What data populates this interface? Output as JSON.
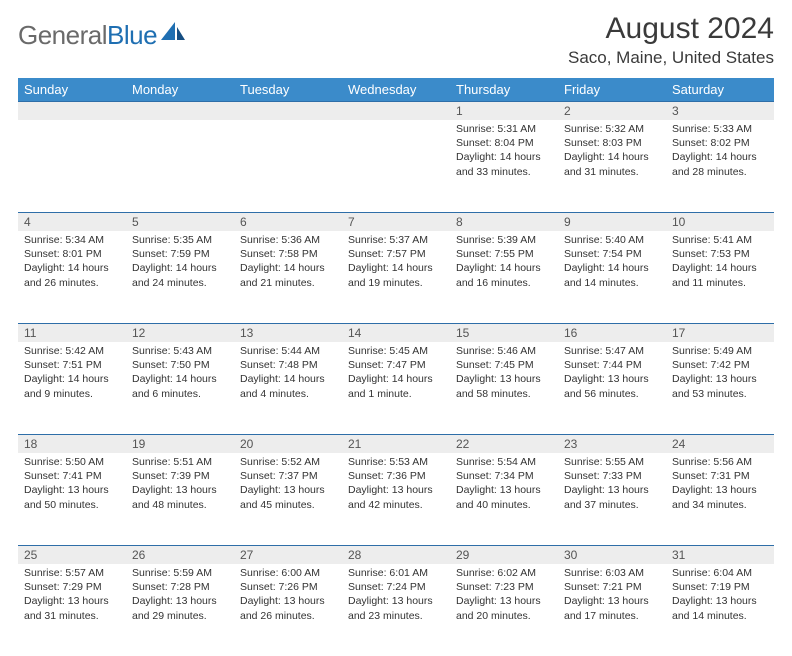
{
  "brand": {
    "part1": "General",
    "part2": "Blue"
  },
  "title": "August 2024",
  "location": "Saco, Maine, United States",
  "theme": {
    "header_bg": "#3b8bca",
    "header_text": "#ffffff",
    "daynum_bg": "#ededed",
    "daynum_border": "#2e6ea8",
    "body_text": "#333333",
    "title_color": "#3a3a3a",
    "title_fontsize": 30,
    "location_fontsize": 17,
    "weekday_fontsize": 13,
    "cell_fontsize": 10.5
  },
  "weekdays": [
    "Sunday",
    "Monday",
    "Tuesday",
    "Wednesday",
    "Thursday",
    "Friday",
    "Saturday"
  ],
  "weeks": [
    [
      null,
      null,
      null,
      null,
      {
        "n": "1",
        "sunrise": "Sunrise: 5:31 AM",
        "sunset": "Sunset: 8:04 PM",
        "daylight": "Daylight: 14 hours and 33 minutes."
      },
      {
        "n": "2",
        "sunrise": "Sunrise: 5:32 AM",
        "sunset": "Sunset: 8:03 PM",
        "daylight": "Daylight: 14 hours and 31 minutes."
      },
      {
        "n": "3",
        "sunrise": "Sunrise: 5:33 AM",
        "sunset": "Sunset: 8:02 PM",
        "daylight": "Daylight: 14 hours and 28 minutes."
      }
    ],
    [
      {
        "n": "4",
        "sunrise": "Sunrise: 5:34 AM",
        "sunset": "Sunset: 8:01 PM",
        "daylight": "Daylight: 14 hours and 26 minutes."
      },
      {
        "n": "5",
        "sunrise": "Sunrise: 5:35 AM",
        "sunset": "Sunset: 7:59 PM",
        "daylight": "Daylight: 14 hours and 24 minutes."
      },
      {
        "n": "6",
        "sunrise": "Sunrise: 5:36 AM",
        "sunset": "Sunset: 7:58 PM",
        "daylight": "Daylight: 14 hours and 21 minutes."
      },
      {
        "n": "7",
        "sunrise": "Sunrise: 5:37 AM",
        "sunset": "Sunset: 7:57 PM",
        "daylight": "Daylight: 14 hours and 19 minutes."
      },
      {
        "n": "8",
        "sunrise": "Sunrise: 5:39 AM",
        "sunset": "Sunset: 7:55 PM",
        "daylight": "Daylight: 14 hours and 16 minutes."
      },
      {
        "n": "9",
        "sunrise": "Sunrise: 5:40 AM",
        "sunset": "Sunset: 7:54 PM",
        "daylight": "Daylight: 14 hours and 14 minutes."
      },
      {
        "n": "10",
        "sunrise": "Sunrise: 5:41 AM",
        "sunset": "Sunset: 7:53 PM",
        "daylight": "Daylight: 14 hours and 11 minutes."
      }
    ],
    [
      {
        "n": "11",
        "sunrise": "Sunrise: 5:42 AM",
        "sunset": "Sunset: 7:51 PM",
        "daylight": "Daylight: 14 hours and 9 minutes."
      },
      {
        "n": "12",
        "sunrise": "Sunrise: 5:43 AM",
        "sunset": "Sunset: 7:50 PM",
        "daylight": "Daylight: 14 hours and 6 minutes."
      },
      {
        "n": "13",
        "sunrise": "Sunrise: 5:44 AM",
        "sunset": "Sunset: 7:48 PM",
        "daylight": "Daylight: 14 hours and 4 minutes."
      },
      {
        "n": "14",
        "sunrise": "Sunrise: 5:45 AM",
        "sunset": "Sunset: 7:47 PM",
        "daylight": "Daylight: 14 hours and 1 minute."
      },
      {
        "n": "15",
        "sunrise": "Sunrise: 5:46 AM",
        "sunset": "Sunset: 7:45 PM",
        "daylight": "Daylight: 13 hours and 58 minutes."
      },
      {
        "n": "16",
        "sunrise": "Sunrise: 5:47 AM",
        "sunset": "Sunset: 7:44 PM",
        "daylight": "Daylight: 13 hours and 56 minutes."
      },
      {
        "n": "17",
        "sunrise": "Sunrise: 5:49 AM",
        "sunset": "Sunset: 7:42 PM",
        "daylight": "Daylight: 13 hours and 53 minutes."
      }
    ],
    [
      {
        "n": "18",
        "sunrise": "Sunrise: 5:50 AM",
        "sunset": "Sunset: 7:41 PM",
        "daylight": "Daylight: 13 hours and 50 minutes."
      },
      {
        "n": "19",
        "sunrise": "Sunrise: 5:51 AM",
        "sunset": "Sunset: 7:39 PM",
        "daylight": "Daylight: 13 hours and 48 minutes."
      },
      {
        "n": "20",
        "sunrise": "Sunrise: 5:52 AM",
        "sunset": "Sunset: 7:37 PM",
        "daylight": "Daylight: 13 hours and 45 minutes."
      },
      {
        "n": "21",
        "sunrise": "Sunrise: 5:53 AM",
        "sunset": "Sunset: 7:36 PM",
        "daylight": "Daylight: 13 hours and 42 minutes."
      },
      {
        "n": "22",
        "sunrise": "Sunrise: 5:54 AM",
        "sunset": "Sunset: 7:34 PM",
        "daylight": "Daylight: 13 hours and 40 minutes."
      },
      {
        "n": "23",
        "sunrise": "Sunrise: 5:55 AM",
        "sunset": "Sunset: 7:33 PM",
        "daylight": "Daylight: 13 hours and 37 minutes."
      },
      {
        "n": "24",
        "sunrise": "Sunrise: 5:56 AM",
        "sunset": "Sunset: 7:31 PM",
        "daylight": "Daylight: 13 hours and 34 minutes."
      }
    ],
    [
      {
        "n": "25",
        "sunrise": "Sunrise: 5:57 AM",
        "sunset": "Sunset: 7:29 PM",
        "daylight": "Daylight: 13 hours and 31 minutes."
      },
      {
        "n": "26",
        "sunrise": "Sunrise: 5:59 AM",
        "sunset": "Sunset: 7:28 PM",
        "daylight": "Daylight: 13 hours and 29 minutes."
      },
      {
        "n": "27",
        "sunrise": "Sunrise: 6:00 AM",
        "sunset": "Sunset: 7:26 PM",
        "daylight": "Daylight: 13 hours and 26 minutes."
      },
      {
        "n": "28",
        "sunrise": "Sunrise: 6:01 AM",
        "sunset": "Sunset: 7:24 PM",
        "daylight": "Daylight: 13 hours and 23 minutes."
      },
      {
        "n": "29",
        "sunrise": "Sunrise: 6:02 AM",
        "sunset": "Sunset: 7:23 PM",
        "daylight": "Daylight: 13 hours and 20 minutes."
      },
      {
        "n": "30",
        "sunrise": "Sunrise: 6:03 AM",
        "sunset": "Sunset: 7:21 PM",
        "daylight": "Daylight: 13 hours and 17 minutes."
      },
      {
        "n": "31",
        "sunrise": "Sunrise: 6:04 AM",
        "sunset": "Sunset: 7:19 PM",
        "daylight": "Daylight: 13 hours and 14 minutes."
      }
    ]
  ]
}
